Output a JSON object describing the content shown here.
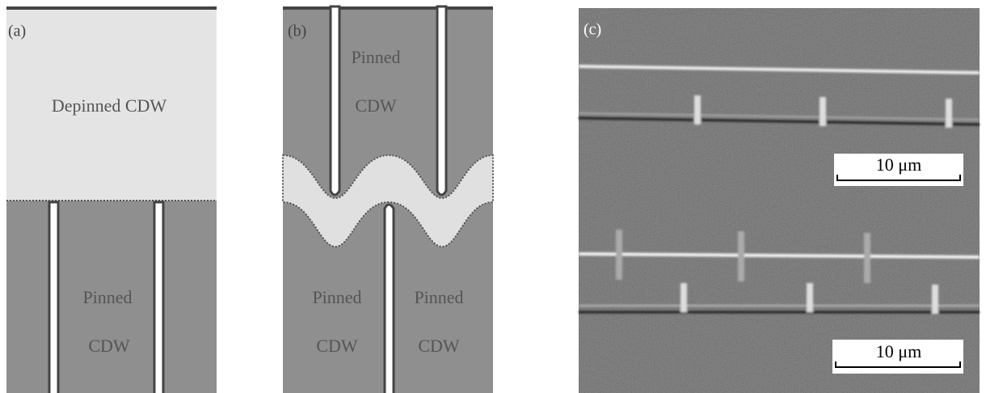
{
  "panel_a": {
    "label": "(a)",
    "top_text": "Depinned CDW",
    "bottom_text": [
      "Pinned",
      "CDW"
    ]
  },
  "panel_b": {
    "label": "(b)",
    "top_text": [
      "Pinned",
      "CDW"
    ],
    "bottom_left_text": [
      "Pinned",
      "CDW"
    ],
    "bottom_right_text": [
      "Pinned",
      "CDW"
    ]
  },
  "panel_c": {
    "label": "(c)",
    "scale_bars": [
      "10 μm",
      "10 μm"
    ]
  }
}
